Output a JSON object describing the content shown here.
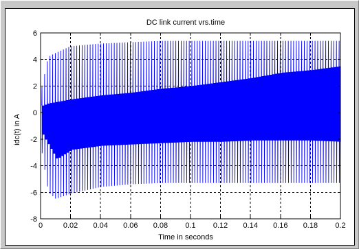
{
  "chart_data": {
    "type": "line",
    "title": "DC link current vrs.time",
    "xlabel": "Time in seconds",
    "ylabel": "idc(t) in A",
    "xlim": [
      0,
      0.2
    ],
    "ylim": [
      -8,
      6
    ],
    "x_ticks": [
      "0",
      "0.02",
      "0.04",
      "0.06",
      "0.08",
      "0.1",
      "0.12",
      "0.14",
      "0.16",
      "0.18",
      "0.2"
    ],
    "y_ticks": [
      "-8",
      "-6",
      "-4",
      "-2",
      "0",
      "2",
      "4",
      "6"
    ],
    "grid": true,
    "series": [
      {
        "color": "#0000ff",
        "description": "high-frequency switching current; spike frequency about 560 Hz",
        "envelope_times": [
          0,
          0.005,
          0.01,
          0.02,
          0.04,
          0.06,
          0.08,
          0.1,
          0.12,
          0.14,
          0.16,
          0.18,
          0.2
        ],
        "peak_max": [
          1.5,
          4.2,
          4.5,
          5.0,
          5.2,
          5.3,
          5.4,
          5.4,
          5.4,
          5.4,
          5.4,
          5.4,
          5.4
        ],
        "peak_min": [
          -2.5,
          -6.0,
          -6.5,
          -6.1,
          -5.6,
          -5.4,
          -5.3,
          -5.3,
          -5.3,
          -5.3,
          -5.3,
          -5.3,
          -5.3
        ],
        "band_top": [
          0.5,
          0.7,
          0.8,
          1.0,
          1.3,
          1.5,
          1.8,
          2.0,
          2.3,
          2.6,
          3.0,
          3.2,
          3.5
        ],
        "band_bottom": [
          -1.5,
          -2.5,
          -3.5,
          -2.8,
          -2.5,
          -2.4,
          -2.3,
          -2.2,
          -2.2,
          -2.1,
          -2.1,
          -2.1,
          -2.2
        ]
      }
    ]
  }
}
